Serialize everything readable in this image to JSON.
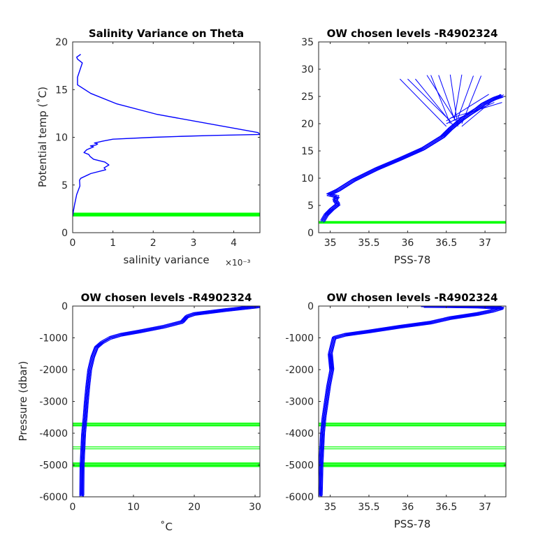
{
  "colors": {
    "profile": "#0000ff",
    "chosen": "#00ff00",
    "axis": "#262626"
  },
  "chosen_levels": {
    "theta": [
      1.75,
      1.8,
      1.85,
      1.9,
      1.95,
      2.0,
      2.05
    ],
    "pressure": [
      -3680,
      -3710,
      -3740,
      -3770,
      -4430,
      -4490,
      -4930,
      -4960,
      -4990,
      -5020,
      -5050
    ]
  },
  "chart_data": [
    {
      "type": "line",
      "title": "Salinity Variance on Theta",
      "xlabel": "salinity variance",
      "xexponent_label": "×10⁻³",
      "ylabel": "Potential temp (˚C)",
      "xlim": [
        0,
        4.65
      ],
      "ylim": [
        0,
        20
      ],
      "xticks": [
        0,
        1,
        2,
        3,
        4
      ],
      "yticks": [
        0,
        5,
        10,
        15,
        20
      ],
      "series": [
        {
          "x": [
            0.0,
            0.02,
            0.05,
            0.1,
            0.18,
            0.17,
            0.2,
            0.45,
            0.82,
            0.78,
            0.9,
            0.8,
            0.52,
            0.43,
            0.4,
            0.28,
            0.35,
            0.52,
            0.44,
            0.58,
            0.62,
            0.54,
            0.75,
            1.0,
            2.0,
            2.7,
            3.5,
            4.65,
            4.6,
            2.1,
            1.1,
            0.45,
            0.12,
            0.12,
            0.24,
            0.12,
            0.1,
            0.2
          ],
          "y": [
            1.7,
            2.3,
            3.0,
            4.0,
            4.9,
            5.5,
            5.7,
            6.2,
            6.6,
            6.8,
            7.1,
            7.4,
            7.7,
            8.0,
            8.2,
            8.4,
            8.7,
            9.0,
            9.1,
            9.2,
            9.3,
            9.4,
            9.6,
            9.8,
            10.0,
            10.1,
            10.2,
            10.3,
            10.5,
            12.4,
            13.5,
            14.6,
            15.5,
            16.3,
            17.8,
            18.2,
            18.4,
            18.7
          ]
        }
      ]
    },
    {
      "type": "line",
      "title": "OW chosen levels -R4902324",
      "xlabel": "PSS-78",
      "xlim": [
        34.85,
        37.27
      ],
      "ylim": [
        0,
        35
      ],
      "xticks": [
        35,
        35.5,
        36,
        36.5,
        37
      ],
      "yticks": [
        0,
        5,
        10,
        15,
        20,
        25,
        30,
        35
      ],
      "series": [
        {
          "x": [
            34.9,
            34.95,
            35.02,
            35.1,
            35.06,
            35.09,
            34.98,
            35.1,
            35.3,
            35.6,
            35.9,
            36.2,
            36.45,
            36.55,
            36.7,
            36.8,
            36.9,
            36.98,
            37.12,
            37.22
          ],
          "y": [
            2.1,
            3.3,
            4.3,
            5.2,
            6.0,
            6.6,
            7.0,
            7.8,
            9.6,
            11.7,
            13.5,
            15.4,
            17.6,
            19.0,
            20.8,
            21.8,
            22.7,
            23.6,
            24.6,
            25.1
          ]
        }
      ]
    },
    {
      "type": "line",
      "title": "OW chosen levels -R4902324",
      "xlabel": "˚C",
      "ylabel": "Pressure (dbar)",
      "xlim": [
        0,
        30.8
      ],
      "ylim": [
        -6000,
        0
      ],
      "xticks": [
        0,
        10,
        20,
        30
      ],
      "yticks": [
        0,
        -1000,
        -2000,
        -3000,
        -4000,
        -5000,
        -6000
      ],
      "series": [
        {
          "x": [
            1.5,
            1.55,
            1.8,
            2.05,
            2.25,
            2.5,
            2.8,
            3.3,
            3.9,
            4.8,
            6.2,
            8.0,
            11.0,
            15.0,
            18.0,
            18.8,
            20.0,
            25.0,
            30.8
          ],
          "y": [
            -5980,
            -5000,
            -4000,
            -3500,
            -3000,
            -2500,
            -2000,
            -1600,
            -1300,
            -1150,
            -1000,
            -900,
            -800,
            -650,
            -500,
            -330,
            -250,
            -130,
            -5
          ]
        }
      ]
    },
    {
      "type": "line",
      "title": "OW chosen levels -R4902324",
      "xlabel": "PSS-78",
      "xlim": [
        34.85,
        37.27
      ],
      "ylim": [
        -6000,
        0
      ],
      "xticks": [
        35,
        35.5,
        36,
        36.5,
        37
      ],
      "yticks": [
        0,
        -1000,
        -2000,
        -3000,
        -4000,
        -5000,
        -6000
      ],
      "series": [
        {
          "x": [
            34.87,
            34.88,
            34.9,
            34.92,
            34.95,
            34.98,
            35.02,
            35.0,
            35.05,
            35.2,
            35.5,
            35.9,
            36.3,
            36.55,
            36.9,
            37.1,
            37.22,
            36.9,
            36.5,
            36.2
          ],
          "y": [
            -5980,
            -5000,
            -4000,
            -3500,
            -3000,
            -2500,
            -2000,
            -1500,
            -1000,
            -900,
            -800,
            -650,
            -520,
            -380,
            -250,
            -150,
            -60,
            -20,
            -5,
            0
          ]
        }
      ]
    }
  ]
}
